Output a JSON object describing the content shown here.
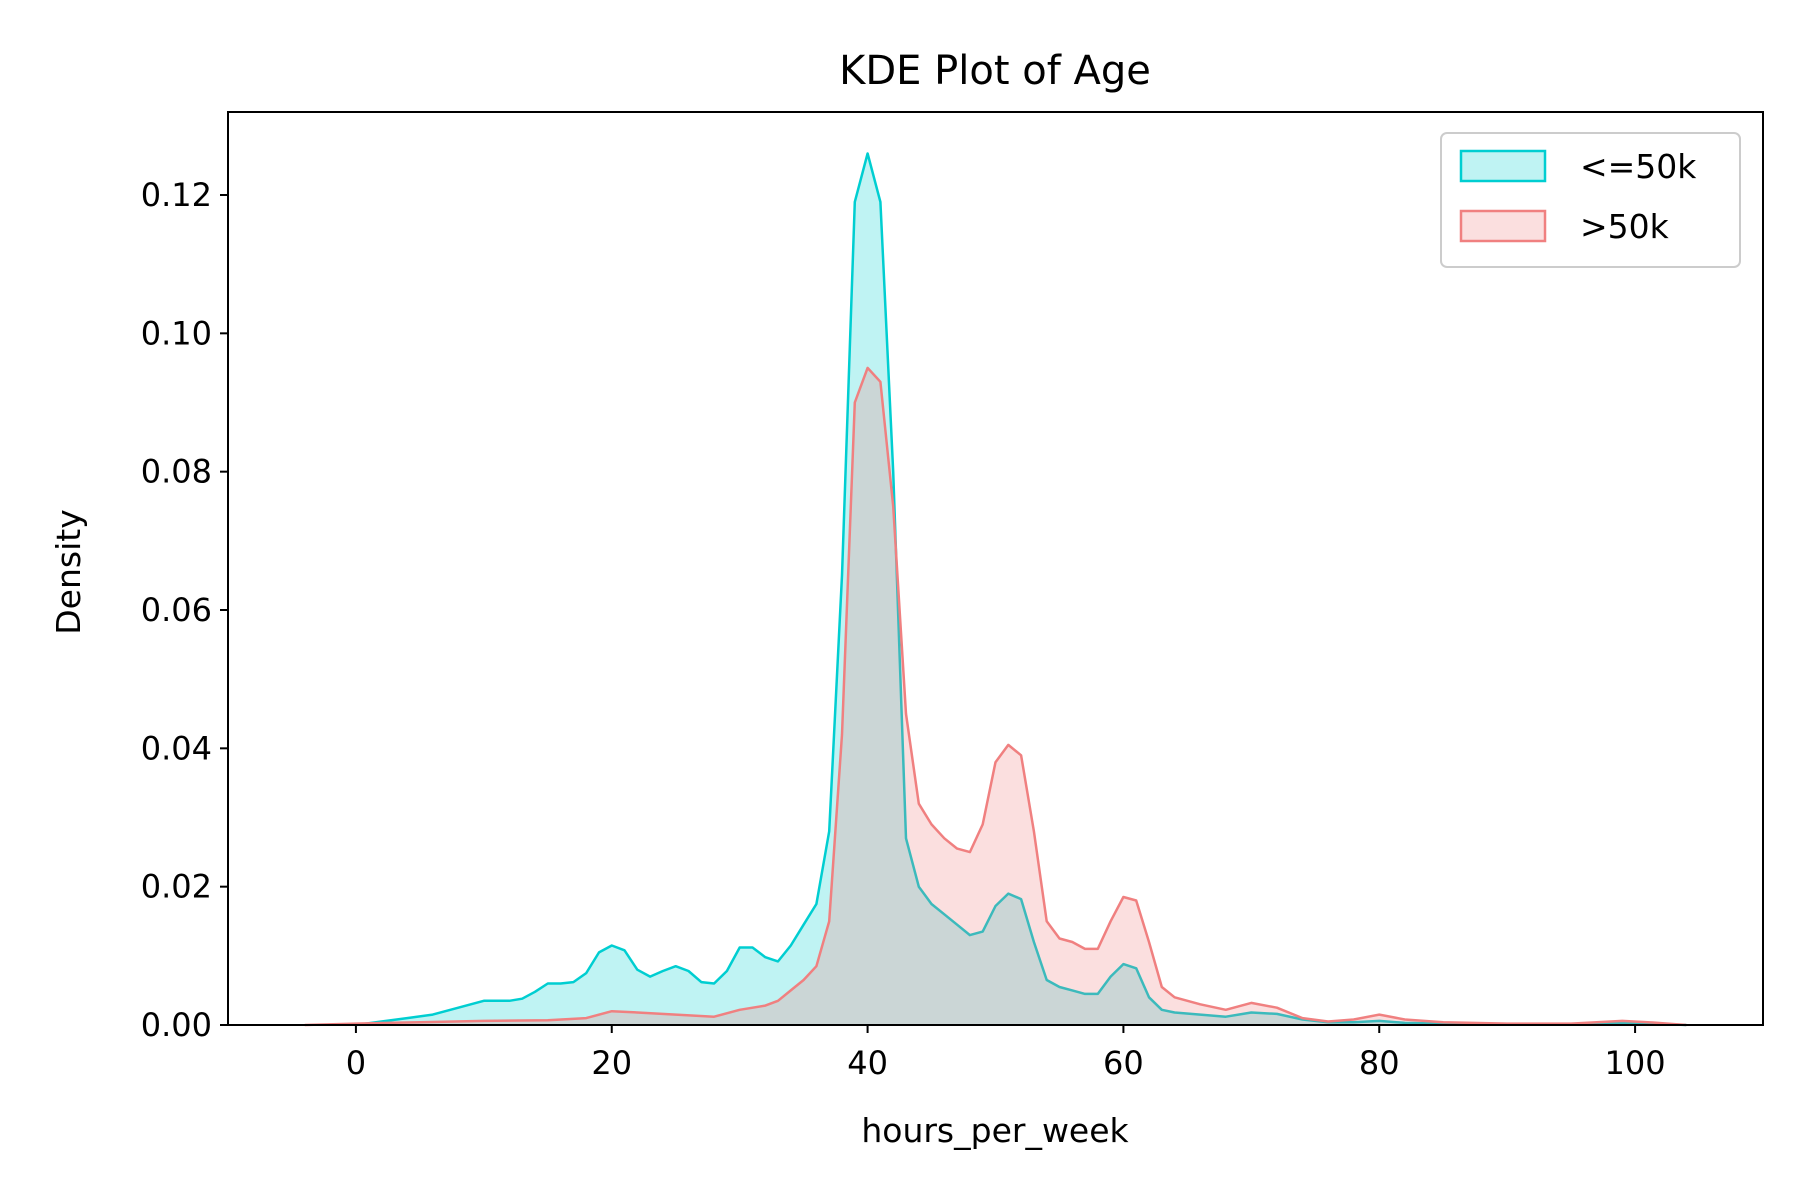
{
  "chart_data": {
    "type": "area",
    "title": "KDE Plot of Age",
    "xlabel": "hours_per_week",
    "ylabel": "Density",
    "xlim": [
      -10,
      110
    ],
    "ylim": [
      0,
      0.132
    ],
    "xticks": [
      0,
      20,
      40,
      60,
      80,
      100
    ],
    "yticks": [
      0.0,
      0.02,
      0.04,
      0.06,
      0.08,
      0.1,
      0.12
    ],
    "ytick_labels": [
      "0.00",
      "0.02",
      "0.04",
      "0.06",
      "0.08",
      "0.10",
      "0.12"
    ],
    "grid": false,
    "legend": "top-right",
    "series": [
      {
        "name": "<=50k",
        "color": "#00CED1",
        "points": [
          [
            0,
            0.0
          ],
          [
            2,
            0.0005
          ],
          [
            4,
            0.001
          ],
          [
            6,
            0.0015
          ],
          [
            8,
            0.0025
          ],
          [
            10,
            0.0035
          ],
          [
            12,
            0.0035
          ],
          [
            13,
            0.0038
          ],
          [
            14,
            0.0048
          ],
          [
            15,
            0.006
          ],
          [
            16,
            0.006
          ],
          [
            17,
            0.0062
          ],
          [
            18,
            0.0075
          ],
          [
            19,
            0.0105
          ],
          [
            20,
            0.0115
          ],
          [
            21,
            0.0108
          ],
          [
            22,
            0.008
          ],
          [
            23,
            0.007
          ],
          [
            24,
            0.0078
          ],
          [
            25,
            0.0085
          ],
          [
            26,
            0.0078
          ],
          [
            27,
            0.0062
          ],
          [
            28,
            0.006
          ],
          [
            29,
            0.0078
          ],
          [
            30,
            0.0112
          ],
          [
            31,
            0.0112
          ],
          [
            32,
            0.0098
          ],
          [
            33,
            0.0092
          ],
          [
            34,
            0.0115
          ],
          [
            35,
            0.0145
          ],
          [
            36,
            0.0175
          ],
          [
            37,
            0.028
          ],
          [
            38,
            0.065
          ],
          [
            39,
            0.119
          ],
          [
            40,
            0.126
          ],
          [
            41,
            0.119
          ],
          [
            42,
            0.08
          ],
          [
            43,
            0.027
          ],
          [
            44,
            0.02
          ],
          [
            45,
            0.0175
          ],
          [
            46,
            0.016
          ],
          [
            47,
            0.0145
          ],
          [
            48,
            0.013
          ],
          [
            49,
            0.0135
          ],
          [
            50,
            0.0172
          ],
          [
            51,
            0.019
          ],
          [
            52,
            0.0182
          ],
          [
            53,
            0.012
          ],
          [
            54,
            0.0065
          ],
          [
            55,
            0.0055
          ],
          [
            56,
            0.005
          ],
          [
            57,
            0.0045
          ],
          [
            58,
            0.0045
          ],
          [
            59,
            0.007
          ],
          [
            60,
            0.0088
          ],
          [
            61,
            0.0082
          ],
          [
            62,
            0.004
          ],
          [
            63,
            0.0022
          ],
          [
            64,
            0.0018
          ],
          [
            66,
            0.0015
          ],
          [
            68,
            0.0012
          ],
          [
            70,
            0.0018
          ],
          [
            72,
            0.0016
          ],
          [
            74,
            0.0008
          ],
          [
            76,
            0.0004
          ],
          [
            78,
            0.0004
          ],
          [
            80,
            0.0006
          ],
          [
            82,
            0.0003
          ],
          [
            85,
            0.0002
          ],
          [
            90,
            0.0001
          ],
          [
            95,
            0.0001
          ],
          [
            100,
            0.0003
          ],
          [
            104,
            0.0
          ]
        ]
      },
      {
        "name": ">50k",
        "color": "#F08080",
        "points": [
          [
            -4,
            0.0
          ],
          [
            0,
            0.0002
          ],
          [
            5,
            0.0004
          ],
          [
            10,
            0.0006
          ],
          [
            15,
            0.0007
          ],
          [
            18,
            0.001
          ],
          [
            20,
            0.002
          ],
          [
            22,
            0.0018
          ],
          [
            25,
            0.0015
          ],
          [
            28,
            0.0012
          ],
          [
            30,
            0.0022
          ],
          [
            32,
            0.0028
          ],
          [
            33,
            0.0035
          ],
          [
            34,
            0.005
          ],
          [
            35,
            0.0065
          ],
          [
            36,
            0.0085
          ],
          [
            37,
            0.015
          ],
          [
            38,
            0.042
          ],
          [
            39,
            0.09
          ],
          [
            40,
            0.095
          ],
          [
            41,
            0.093
          ],
          [
            42,
            0.075
          ],
          [
            43,
            0.045
          ],
          [
            44,
            0.032
          ],
          [
            45,
            0.029
          ],
          [
            46,
            0.027
          ],
          [
            47,
            0.0255
          ],
          [
            48,
            0.025
          ],
          [
            49,
            0.029
          ],
          [
            50,
            0.038
          ],
          [
            51,
            0.0405
          ],
          [
            52,
            0.039
          ],
          [
            53,
            0.028
          ],
          [
            54,
            0.015
          ],
          [
            55,
            0.0125
          ],
          [
            56,
            0.012
          ],
          [
            57,
            0.011
          ],
          [
            58,
            0.011
          ],
          [
            59,
            0.015
          ],
          [
            60,
            0.0185
          ],
          [
            61,
            0.018
          ],
          [
            62,
            0.012
          ],
          [
            63,
            0.0055
          ],
          [
            64,
            0.004
          ],
          [
            66,
            0.003
          ],
          [
            68,
            0.0022
          ],
          [
            70,
            0.0032
          ],
          [
            72,
            0.0025
          ],
          [
            74,
            0.001
          ],
          [
            76,
            0.0005
          ],
          [
            78,
            0.0008
          ],
          [
            80,
            0.0015
          ],
          [
            82,
            0.0008
          ],
          [
            85,
            0.0004
          ],
          [
            90,
            0.0002
          ],
          [
            95,
            0.0002
          ],
          [
            99,
            0.0006
          ],
          [
            101,
            0.0004
          ],
          [
            104,
            0.0
          ]
        ]
      }
    ]
  }
}
